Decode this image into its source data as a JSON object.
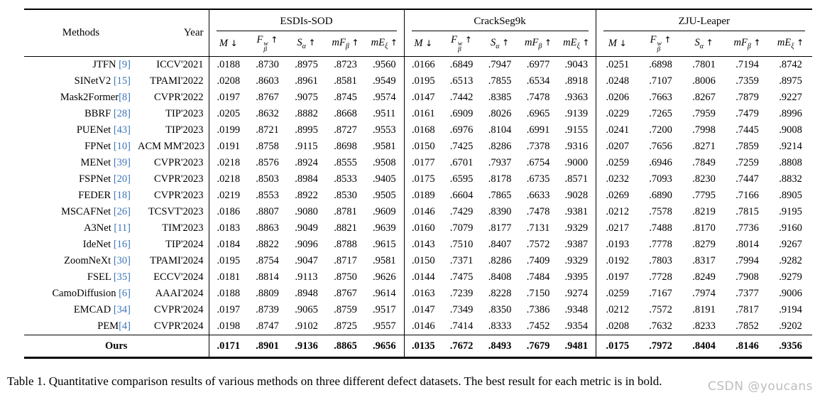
{
  "header": {
    "methods_label": "Methods",
    "year_label": "Year",
    "datasets": [
      "ESDIs-SOD",
      "CrackSeg9k",
      "ZJU-Leaper"
    ],
    "metrics": [
      {
        "symbol": "M",
        "sup": "",
        "sub": "",
        "arrow": "↓"
      },
      {
        "symbol": "F",
        "sup": "w",
        "sub": "β",
        "arrow": "↑"
      },
      {
        "symbol": "S",
        "sup": "",
        "sub": "α",
        "arrow": "↑"
      },
      {
        "symbol": "mF",
        "sup": "",
        "sub": "β",
        "arrow": "↑"
      },
      {
        "symbol": "mE",
        "sup": "",
        "sub": "ξ",
        "arrow": "↑"
      }
    ]
  },
  "rows": [
    {
      "method": "JTFN",
      "ref": "[9]",
      "ref_space": true,
      "year": "ICCV'2021",
      "values": [
        [
          ".0188",
          ".8730",
          ".8975",
          ".8723",
          ".9560"
        ],
        [
          ".0166",
          ".6849",
          ".7947",
          ".6977",
          ".9043"
        ],
        [
          ".0251",
          ".6898",
          ".7801",
          ".7194",
          ".8742"
        ]
      ]
    },
    {
      "method": "SINetV2",
      "ref": "[15]",
      "ref_space": true,
      "year": "TPAMI'2022",
      "values": [
        [
          ".0208",
          ".8603",
          ".8961",
          ".8581",
          ".9549"
        ],
        [
          ".0195",
          ".6513",
          ".7855",
          ".6534",
          ".8918"
        ],
        [
          ".0248",
          ".7107",
          ".8006",
          ".7359",
          ".8975"
        ]
      ]
    },
    {
      "method": "Mask2Former",
      "ref": "[8]",
      "ref_space": false,
      "year": "CVPR'2022",
      "values": [
        [
          ".0197",
          ".8767",
          ".9075",
          ".8745",
          ".9574"
        ],
        [
          ".0147",
          ".7442",
          ".8385",
          ".7478",
          ".9363"
        ],
        [
          ".0206",
          ".7663",
          ".8267",
          ".7879",
          ".9227"
        ]
      ]
    },
    {
      "method": "BBRF",
      "ref": "[28]",
      "ref_space": true,
      "year": "TIP'2023",
      "values": [
        [
          ".0205",
          ".8632",
          ".8882",
          ".8668",
          ".9511"
        ],
        [
          ".0161",
          ".6909",
          ".8026",
          ".6965",
          ".9139"
        ],
        [
          ".0229",
          ".7265",
          ".7959",
          ".7479",
          ".8996"
        ]
      ]
    },
    {
      "method": "PUENet",
      "ref": "[43]",
      "ref_space": true,
      "year": "TIP'2023",
      "values": [
        [
          ".0199",
          ".8721",
          ".8995",
          ".8727",
          ".9553"
        ],
        [
          ".0168",
          ".6976",
          ".8104",
          ".6991",
          ".9155"
        ],
        [
          ".0241",
          ".7200",
          ".7998",
          ".7445",
          ".9008"
        ]
      ]
    },
    {
      "method": "FPNet",
      "ref": "[10]",
      "ref_space": true,
      "year": "ACM MM'2023",
      "values": [
        [
          ".0191",
          ".8758",
          ".9115",
          ".8698",
          ".9581"
        ],
        [
          ".0150",
          ".7425",
          ".8286",
          ".7378",
          ".9316"
        ],
        [
          ".0207",
          ".7656",
          ".8271",
          ".7859",
          ".9214"
        ]
      ]
    },
    {
      "method": "MENet",
      "ref": "[39]",
      "ref_space": true,
      "year": "CVPR'2023",
      "values": [
        [
          ".0218",
          ".8576",
          ".8924",
          ".8555",
          ".9508"
        ],
        [
          ".0177",
          ".6701",
          ".7937",
          ".6754",
          ".9000"
        ],
        [
          ".0259",
          ".6946",
          ".7849",
          ".7259",
          ".8808"
        ]
      ]
    },
    {
      "method": "FSPNet",
      "ref": "[20]",
      "ref_space": true,
      "year": "CVPR'2023",
      "values": [
        [
          ".0218",
          ".8503",
          ".8984",
          ".8533",
          ".9405"
        ],
        [
          ".0175",
          ".6595",
          ".8178",
          ".6735",
          ".8571"
        ],
        [
          ".0232",
          ".7093",
          ".8230",
          ".7447",
          ".8832"
        ]
      ]
    },
    {
      "method": "FEDER",
      "ref": "[18]",
      "ref_space": true,
      "year": "CVPR'2023",
      "values": [
        [
          ".0219",
          ".8553",
          ".8922",
          ".8530",
          ".9505"
        ],
        [
          ".0189",
          ".6604",
          ".7865",
          ".6633",
          ".9028"
        ],
        [
          ".0269",
          ".6890",
          ".7795",
          ".7166",
          ".8905"
        ]
      ]
    },
    {
      "method": "MSCAFNet",
      "ref": "[26]",
      "ref_space": true,
      "year": "TCSVT'2023",
      "values": [
        [
          ".0186",
          ".8807",
          ".9080",
          ".8781",
          ".9609"
        ],
        [
          ".0146",
          ".7429",
          ".8390",
          ".7478",
          ".9381"
        ],
        [
          ".0212",
          ".7578",
          ".8219",
          ".7815",
          ".9195"
        ]
      ]
    },
    {
      "method": "A3Net",
      "ref": "[11]",
      "ref_space": true,
      "year": "TIM'2023",
      "values": [
        [
          ".0183",
          ".8863",
          ".9049",
          ".8821",
          ".9639"
        ],
        [
          ".0160",
          ".7079",
          ".8177",
          ".7131",
          ".9329"
        ],
        [
          ".0217",
          ".7488",
          ".8170",
          ".7736",
          ".9160"
        ]
      ]
    },
    {
      "method": "IdeNet",
      "ref": "[16]",
      "ref_space": true,
      "year": "TIP'2024",
      "values": [
        [
          ".0184",
          ".8822",
          ".9096",
          ".8788",
          ".9615"
        ],
        [
          ".0143",
          ".7510",
          ".8407",
          ".7572",
          ".9387"
        ],
        [
          ".0193",
          ".7778",
          ".8279",
          ".8014",
          ".9267"
        ]
      ]
    },
    {
      "method": "ZoomNeXt",
      "ref": "[30]",
      "ref_space": true,
      "year": "TPAMI'2024",
      "values": [
        [
          ".0195",
          ".8754",
          ".9047",
          ".8717",
          ".9581"
        ],
        [
          ".0150",
          ".7371",
          ".8286",
          ".7409",
          ".9329"
        ],
        [
          ".0192",
          ".7803",
          ".8317",
          ".7994",
          ".9282"
        ]
      ]
    },
    {
      "method": "FSEL",
      "ref": "[35]",
      "ref_space": true,
      "year": "ECCV'2024",
      "values": [
        [
          ".0181",
          ".8814",
          ".9113",
          ".8750",
          ".9626"
        ],
        [
          ".0144",
          ".7475",
          ".8408",
          ".7484",
          ".9395"
        ],
        [
          ".0197",
          ".7728",
          ".8249",
          ".7908",
          ".9279"
        ]
      ]
    },
    {
      "method": "CamoDiffusion",
      "ref": "[6]",
      "ref_space": true,
      "year": "AAAI'2024",
      "values": [
        [
          ".0188",
          ".8809",
          ".8948",
          ".8767",
          ".9614"
        ],
        [
          ".0163",
          ".7239",
          ".8228",
          ".7150",
          ".9274"
        ],
        [
          ".0259",
          ".7167",
          ".7974",
          ".7377",
          ".9006"
        ]
      ]
    },
    {
      "method": "EMCAD",
      "ref": "[34]",
      "ref_space": true,
      "year": "CVPR'2024",
      "values": [
        [
          ".0197",
          ".8739",
          ".9065",
          ".8759",
          ".9517"
        ],
        [
          ".0147",
          ".7349",
          ".8350",
          ".7386",
          ".9348"
        ],
        [
          ".0212",
          ".7572",
          ".8191",
          ".7817",
          ".9194"
        ]
      ]
    },
    {
      "method": "PEM",
      "ref": "[4]",
      "ref_space": false,
      "year": "CVPR'2024",
      "values": [
        [
          ".0198",
          ".8747",
          ".9102",
          ".8725",
          ".9557"
        ],
        [
          ".0146",
          ".7414",
          ".8333",
          ".7452",
          ".9354"
        ],
        [
          ".0208",
          ".7632",
          ".8233",
          ".7852",
          ".9202"
        ]
      ]
    }
  ],
  "ours_row": {
    "label": "Ours",
    "values": [
      [
        ".0171",
        ".8901",
        ".9136",
        ".8865",
        ".9656"
      ],
      [
        ".0135",
        ".7672",
        ".8493",
        ".7679",
        ".9481"
      ],
      [
        ".0175",
        ".7972",
        ".8404",
        ".8146",
        ".9356"
      ]
    ]
  },
  "caption": "Table 1. Quantitative comparison results of various methods on three different defect datasets. The best result for each metric is in bold.",
  "watermark": "CSDN @youcans",
  "colors": {
    "citation_blue": "#3d74b8",
    "watermark_gray": "#b2b2b2",
    "rule_black": "#000000"
  }
}
